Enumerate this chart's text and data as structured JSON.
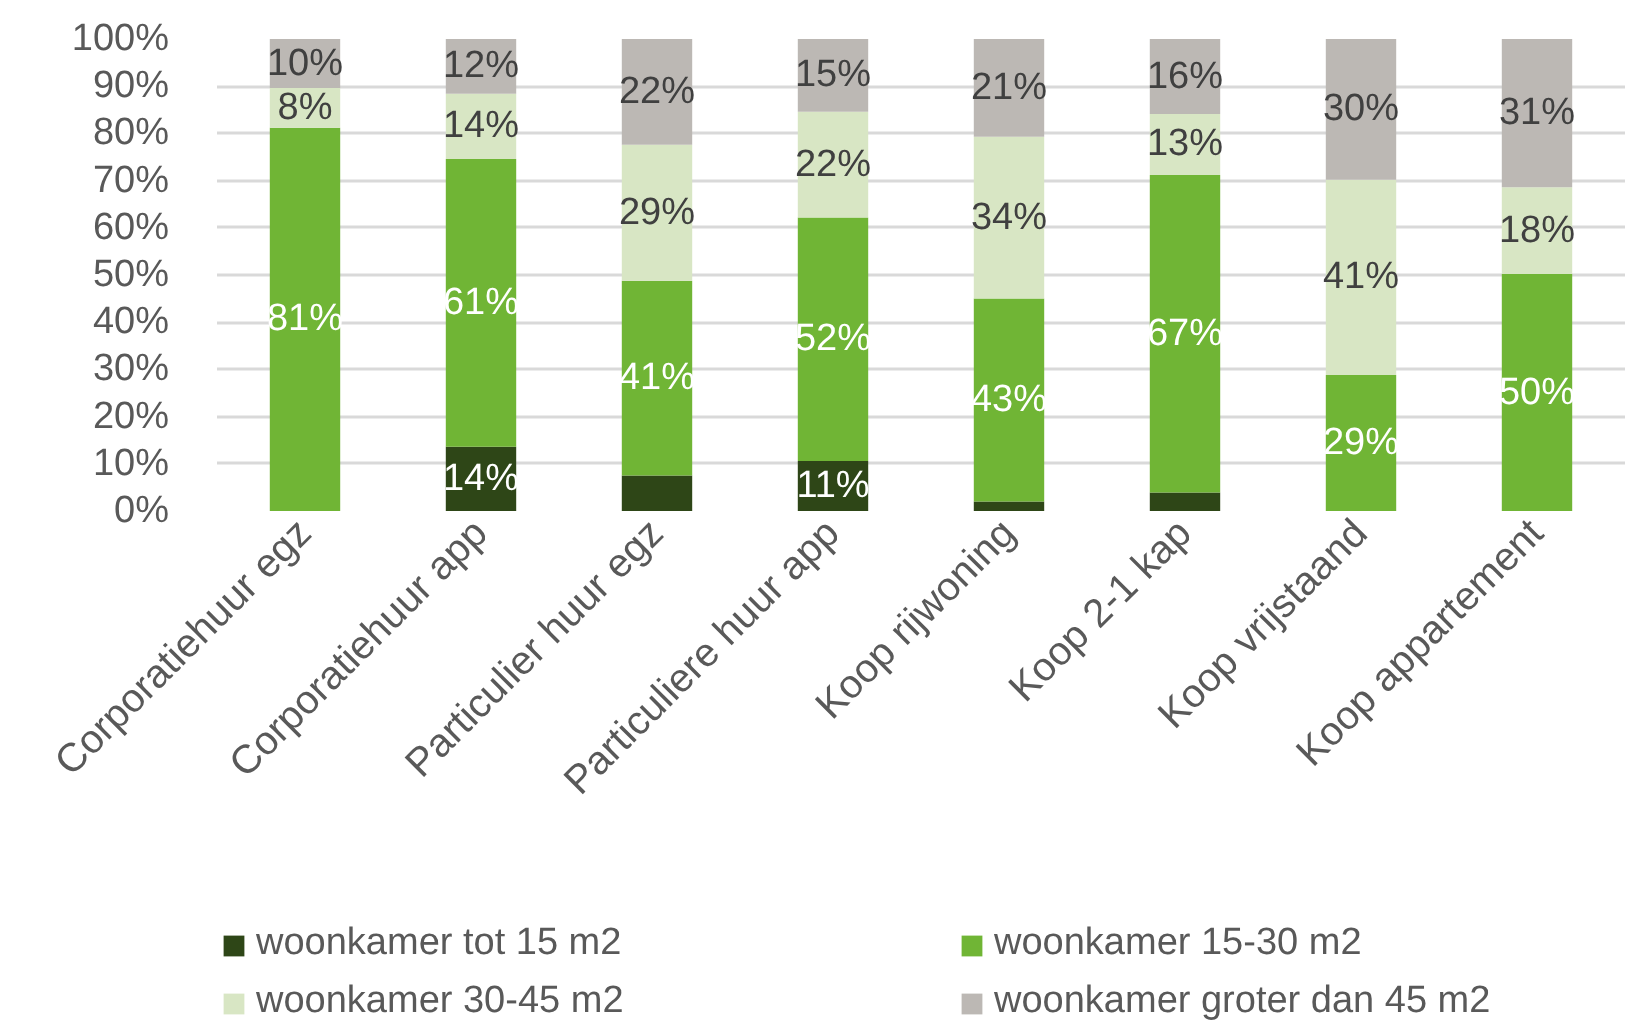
{
  "chart_data": {
    "type": "bar",
    "stacked": true,
    "categories": [
      "Corporatiehuur egz",
      "Corporatiehuur app",
      "Particulier huur egz",
      "Particuliere huur app",
      "Koop rijwoning",
      "Koop 2-1 kap",
      "Koop vrijstaand",
      "Koop appartement"
    ],
    "series": [
      {
        "name": "woonkamer tot 15 m2",
        "color": "#2e4617",
        "values": [
          null,
          13.6,
          7.5,
          10.6,
          2.0,
          3.9,
          null,
          null
        ],
        "value_labels": [
          null,
          "14%",
          null,
          "11%",
          null,
          null,
          null,
          null
        ]
      },
      {
        "name": "woonkamer 15-30 m2",
        "color": "#70b535",
        "values": [
          81.2,
          61,
          41.3,
          51.6,
          43,
          67.3,
          28.8,
          50.2
        ],
        "value_labels": [
          "81%",
          "61%",
          "41%",
          "52%",
          "43%",
          "67%",
          "29%",
          "50%"
        ]
      },
      {
        "name": "woonkamer 30-45 m2",
        "color": "#d8e6c4",
        "values": [
          8.4,
          13.8,
          28.8,
          22.4,
          34.3,
          12.9,
          41.4,
          18.4
        ],
        "value_labels": [
          "8%",
          "14%",
          "29%",
          "22%",
          "34%",
          "13%",
          "41%",
          "18%"
        ]
      },
      {
        "name": "woonkamer groter dan 45 m2",
        "color": "#bcb8b4",
        "values": [
          10.4,
          11.6,
          22.4,
          15.4,
          20.7,
          15.9,
          29.8,
          31.4
        ],
        "value_labels": [
          "10%",
          "12%",
          "22%",
          "15%",
          "21%",
          "16%",
          "30%",
          "31%"
        ]
      }
    ],
    "ylim": [
      0,
      100
    ],
    "yticks": [
      {
        "value": 0,
        "label": "0%"
      },
      {
        "value": 10,
        "label": "10%"
      },
      {
        "value": 20,
        "label": "20%"
      },
      {
        "value": 30,
        "label": "30%"
      },
      {
        "value": 40,
        "label": "40%"
      },
      {
        "value": 50,
        "label": "50%"
      },
      {
        "value": 60,
        "label": "60%"
      },
      {
        "value": 70,
        "label": "70%"
      },
      {
        "value": 80,
        "label": "80%"
      },
      {
        "value": 90,
        "label": "90%"
      },
      {
        "value": 100,
        "label": "100%"
      }
    ],
    "grid": "y",
    "legend": "bottom"
  }
}
